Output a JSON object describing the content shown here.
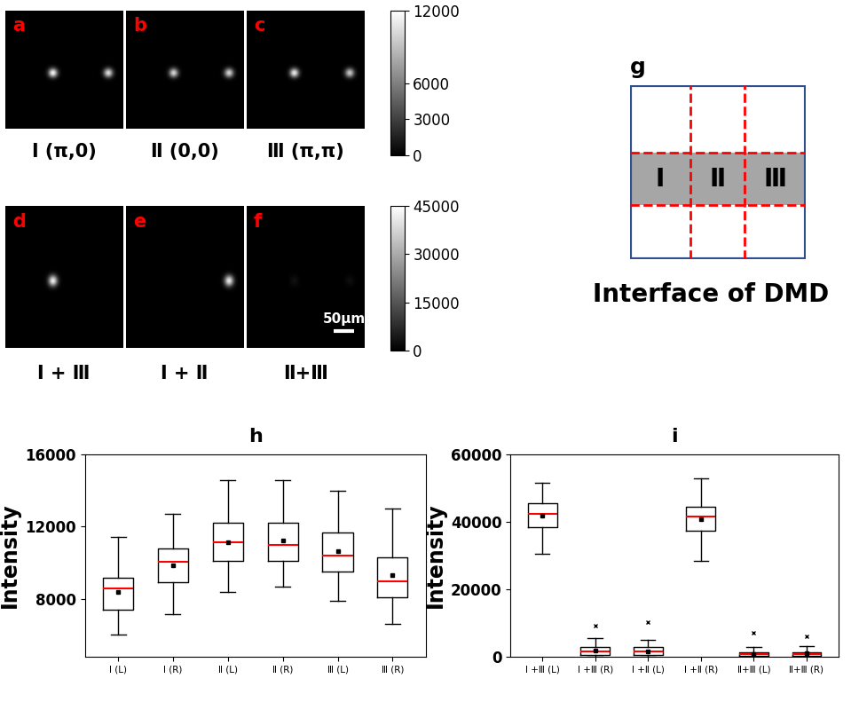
{
  "images": {
    "size": 130,
    "rows": [
      {
        "colorbar": {
          "range": [
            0,
            12000
          ],
          "ticks": [
            0,
            3000,
            6000,
            12000
          ]
        },
        "panels": [
          {
            "letter": "a",
            "label": "Ⅰ (π,0)",
            "spots": [
              {
                "x": 52,
                "y": 68,
                "peak": 11500
              },
              {
                "x": 113,
                "y": 68,
                "peak": 10500
              }
            ]
          },
          {
            "letter": "b",
            "label": "Ⅱ (0,0)",
            "spots": [
              {
                "x": 52,
                "y": 68,
                "peak": 10000
              },
              {
                "x": 113,
                "y": 68,
                "peak": 10000
              }
            ]
          },
          {
            "letter": "c",
            "label": "Ⅲ (π,π)",
            "spots": [
              {
                "x": 52,
                "y": 68,
                "peak": 11000
              },
              {
                "x": 113,
                "y": 68,
                "peak": 9500
              }
            ]
          }
        ]
      },
      {
        "colorbar": {
          "range": [
            0,
            45000
          ],
          "ticks": [
            0,
            15000,
            30000,
            45000
          ]
        },
        "panels": [
          {
            "letter": "d",
            "label": "Ⅰ + Ⅲ",
            "spots": [
              {
                "x": 52,
                "y": 68,
                "peak": 42000
              }
            ]
          },
          {
            "letter": "e",
            "label": "Ⅰ + Ⅱ",
            "spots": [
              {
                "x": 113,
                "y": 68,
                "peak": 41000
              }
            ]
          },
          {
            "letter": "f",
            "label": "Ⅱ+Ⅲ",
            "spots": [
              {
                "x": 52,
                "y": 68,
                "peak": 3000
              },
              {
                "x": 113,
                "y": 68,
                "peak": 2500
              }
            ],
            "scale_bar": {
              "label": "50μm",
              "length": 22
            }
          }
        ]
      }
    ]
  },
  "diagram": {
    "letter": "g",
    "caption": "Interface of DMD",
    "cells": [
      "Ⅰ",
      "Ⅱ",
      "Ⅲ"
    ]
  },
  "chart_data": [
    {
      "type": "box",
      "title": "h",
      "y_label": "Intensity",
      "categories": [
        "Ⅰ (L)",
        "Ⅰ (R)",
        "Ⅱ (L)",
        "Ⅱ (R)",
        "Ⅲ (L)",
        "Ⅲ (R)"
      ],
      "boxes": [
        {
          "whislo": 6050,
          "q1": 7400,
          "med": 8600,
          "mean": 8400,
          "q3": 9150,
          "whishi": 11450,
          "fliers": []
        },
        {
          "whislo": 7150,
          "q1": 8950,
          "med": 10050,
          "mean": 9850,
          "q3": 10800,
          "whishi": 12700,
          "fliers": []
        },
        {
          "whislo": 8400,
          "q1": 10100,
          "med": 11150,
          "mean": 11150,
          "q3": 12200,
          "whishi": 14600,
          "fliers": []
        },
        {
          "whislo": 8700,
          "q1": 10100,
          "med": 11000,
          "mean": 11250,
          "q3": 12200,
          "whishi": 14600,
          "fliers": []
        },
        {
          "whislo": 7900,
          "q1": 9500,
          "med": 10400,
          "mean": 10650,
          "q3": 11700,
          "whishi": 14000,
          "fliers": []
        },
        {
          "whislo": 6600,
          "q1": 8100,
          "med": 9000,
          "mean": 9300,
          "q3": 10300,
          "whishi": 13000,
          "fliers": []
        }
      ],
      "ylim": [
        4800,
        16000
      ],
      "yticks": [
        8000,
        12000,
        16000
      ]
    },
    {
      "type": "box",
      "title": "i",
      "y_label": "Intensity",
      "categories": [
        "Ⅰ +Ⅲ (L)",
        "Ⅰ +Ⅲ (R)",
        "Ⅰ +Ⅱ (L)",
        "Ⅰ +Ⅱ (R)",
        "Ⅱ+Ⅲ (L)",
        "Ⅱ+Ⅲ (R)"
      ],
      "boxes": [
        {
          "whislo": 30500,
          "q1": 38500,
          "med": 42500,
          "mean": 41800,
          "q3": 45500,
          "whishi": 51500,
          "fliers": []
        },
        {
          "whislo": 0,
          "q1": 500,
          "med": 1500,
          "mean": 1800,
          "q3": 2800,
          "whishi": 5500,
          "fliers": [
            9300
          ]
        },
        {
          "whislo": 0,
          "q1": 500,
          "med": 1500,
          "mean": 1700,
          "q3": 2800,
          "whishi": 5000,
          "fliers": [
            10200
          ]
        },
        {
          "whislo": 28500,
          "q1": 37500,
          "med": 41500,
          "mean": 40800,
          "q3": 44500,
          "whishi": 52800,
          "fliers": []
        },
        {
          "whislo": 0,
          "q1": 200,
          "med": 800,
          "mean": 900,
          "q3": 1300,
          "whishi": 3000,
          "fliers": [
            7000
          ]
        },
        {
          "whislo": 0,
          "q1": 200,
          "med": 700,
          "mean": 1000,
          "q3": 1300,
          "whishi": 3200,
          "fliers": [
            6000
          ]
        }
      ],
      "ylim": [
        0,
        60000
      ],
      "yticks": [
        0,
        20000,
        40000,
        60000
      ]
    }
  ]
}
